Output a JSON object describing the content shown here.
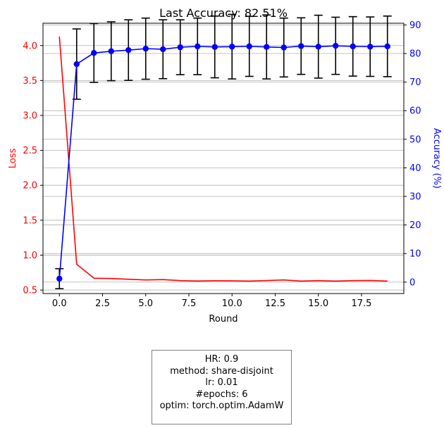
{
  "chart_data": {
    "type": "line",
    "title": "Last Accuracy: 82.51%",
    "xlabel": "Round",
    "ylabel_left": "Loss",
    "ylabel_right": "Accuracy (%)",
    "xlim": [
      -0.95,
      19.95
    ],
    "ylim_left": [
      0.45,
      4.32
    ],
    "ylim_right": [
      -4.0,
      90.6
    ],
    "x_ticks": [
      "0.0",
      "2.5",
      "5.0",
      "7.5",
      "10.0",
      "12.5",
      "15.0",
      "17.5"
    ],
    "x_tick_values": [
      0,
      2.5,
      5,
      7.5,
      10,
      12.5,
      15,
      17.5
    ],
    "y_left_ticks": [
      "0.5",
      "1.0",
      "1.5",
      "2.0",
      "2.5",
      "3.0",
      "3.5",
      "4.0"
    ],
    "y_left_tick_values": [
      0.5,
      1.0,
      1.5,
      2.0,
      2.5,
      3.0,
      3.5,
      4.0
    ],
    "y_right_ticks": [
      "0",
      "10",
      "20",
      "30",
      "40",
      "50",
      "60",
      "70",
      "80",
      "90"
    ],
    "y_right_tick_values": [
      0,
      10,
      20,
      30,
      40,
      50,
      60,
      70,
      80,
      90
    ],
    "grid": true,
    "x": [
      0,
      1,
      2,
      3,
      4,
      5,
      6,
      7,
      8,
      9,
      10,
      11,
      12,
      13,
      14,
      15,
      16,
      17,
      18,
      19
    ],
    "series": [
      {
        "axis": "left",
        "color": "#ff0000",
        "values": [
          4.13,
          0.87,
          0.67,
          0.665,
          0.655,
          0.645,
          0.65,
          0.635,
          0.63,
          0.633,
          0.632,
          0.628,
          0.636,
          0.645,
          0.628,
          0.635,
          0.628,
          0.635,
          0.637,
          0.628
        ]
      },
      {
        "axis": "right",
        "color": "#0000ff",
        "marker": "circle",
        "values": [
          1.2,
          76.3,
          80.2,
          80.8,
          81.2,
          81.7,
          81.5,
          82.2,
          82.5,
          82.3,
          82.4,
          82.5,
          82.3,
          82.1,
          82.6,
          82.4,
          82.7,
          82.5,
          82.4,
          82.51
        ],
        "error": [
          3.5,
          12.3,
          10.3,
          10.3,
          10.6,
          10.7,
          10.3,
          9.6,
          9.9,
          10.8,
          11.3,
          10.5,
          11.2,
          10.3,
          9.9,
          11.0,
          10.0,
          10.4,
          10.4,
          10.6
        ]
      }
    ]
  },
  "info_box": {
    "lines": [
      "HR: 0.9",
      "method: share-disjoint",
      "lr: 0.01",
      "#epochs: 6",
      "optim: torch.optim.AdamW"
    ]
  }
}
